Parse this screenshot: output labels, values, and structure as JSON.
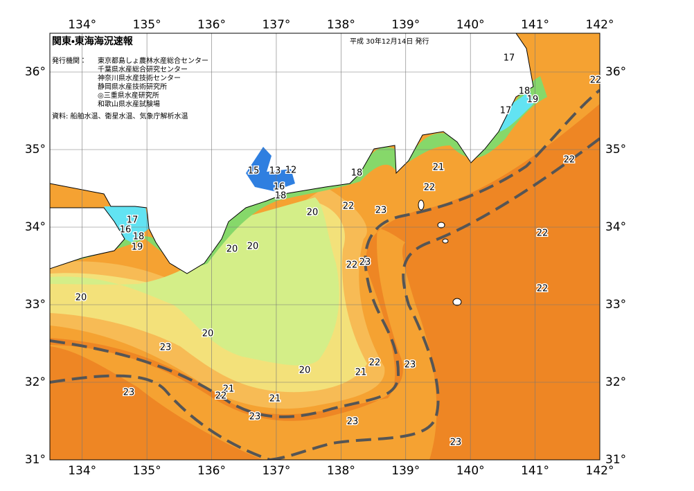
{
  "map": {
    "title": "関東・東海海況速報",
    "issued": "平成 30年12月14日 発行",
    "agencies_label": "発行機関：",
    "agencies": [
      "東京都島しょ農林水産総合センター",
      "千葉県水産総合研究センター",
      "神奈川県水産技術センター",
      "静岡県水産技術研究所",
      "◎三重県水産研究所",
      "和歌山県水産試験場"
    ],
    "source": "資料: 船舶水温、衛星水温、気象庁解析水温",
    "lon_range": [
      133.5,
      142
    ],
    "lat_range": [
      31,
      36.5
    ],
    "lon_ticks": [
      {
        "value": 134,
        "label": "134°"
      },
      {
        "value": 135,
        "label": "135°"
      },
      {
        "value": 136,
        "label": "136°"
      },
      {
        "value": 137,
        "label": "137°"
      },
      {
        "value": 138,
        "label": "138°"
      },
      {
        "value": 139,
        "label": "139°"
      },
      {
        "value": 140,
        "label": "140°"
      },
      {
        "value": 141,
        "label": "141°"
      },
      {
        "value": 142,
        "label": "142°"
      }
    ],
    "lat_ticks": [
      {
        "value": 31,
        "label": "31°"
      },
      {
        "value": 32,
        "label": "32°"
      },
      {
        "value": 33,
        "label": "33°"
      },
      {
        "value": 34,
        "label": "34°"
      },
      {
        "value": 35,
        "label": "35°"
      },
      {
        "value": 36,
        "label": "36°"
      }
    ],
    "isotherm_labels": [
      17,
      18,
      19,
      17,
      22,
      21,
      22,
      22,
      18,
      15,
      13,
      12,
      16,
      18,
      22,
      23,
      20,
      17,
      16,
      18,
      19,
      20,
      20,
      22,
      22,
      23,
      22,
      20,
      20,
      23,
      22,
      21,
      23,
      20,
      21,
      22,
      23,
      21,
      23,
      23,
      23
    ]
  }
}
